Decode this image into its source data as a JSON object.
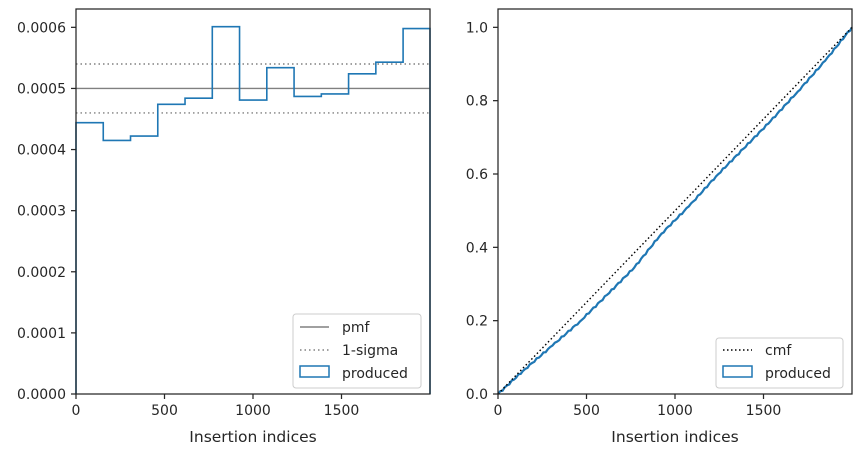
{
  "colors": {
    "pmf": "#808080",
    "sigma": "#808080",
    "produced": "#1f77b4",
    "cmf": "#000000",
    "axes": "#262626"
  },
  "chart_data": [
    {
      "type": "step-histogram",
      "xlabel": "Insertion indices",
      "ylabel": "",
      "xlim": [
        0,
        2000
      ],
      "ylim": [
        0,
        0.00063
      ],
      "xticks": [
        0,
        500,
        1000,
        1500
      ],
      "xtick_labels": [
        "0",
        "500",
        "1000",
        "1500"
      ],
      "yticks": [
        0,
        0.0001,
        0.0002,
        0.0003,
        0.0004,
        0.0005,
        0.0006
      ],
      "ytick_labels": [
        "0.0000",
        "0.0001",
        "0.0002",
        "0.0003",
        "0.0004",
        "0.0005",
        "0.0006"
      ],
      "legend_position": "lower right",
      "legend": [
        "pmf",
        "1-sigma",
        "produced"
      ],
      "pmf": 0.0005,
      "sigma_band": [
        0.00046,
        0.00054
      ],
      "bin_edges": [
        0,
        154,
        308,
        462,
        616,
        770,
        924,
        1078,
        1232,
        1386,
        1540,
        1694,
        1848,
        2000
      ],
      "produced": [
        0.000444,
        0.000415,
        0.000422,
        0.000474,
        0.000484,
        0.000601,
        0.000481,
        0.000534,
        0.000487,
        0.000491,
        0.000524,
        0.000543,
        0.000598
      ]
    },
    {
      "type": "line",
      "xlabel": "Insertion indices",
      "ylabel": "",
      "xlim": [
        0,
        2000
      ],
      "ylim": [
        0,
        1.05
      ],
      "xticks": [
        0,
        500,
        1000,
        1500
      ],
      "xtick_labels": [
        "0",
        "500",
        "1000",
        "1500"
      ],
      "yticks": [
        0,
        0.2,
        0.4,
        0.6,
        0.8,
        1.0
      ],
      "ytick_labels": [
        "0.0",
        "0.2",
        "0.4",
        "0.6",
        "0.8",
        "1.0"
      ],
      "legend_position": "lower right",
      "legend": [
        "cmf",
        "produced"
      ],
      "cmf": {
        "x": [
          0,
          2000
        ],
        "y": [
          0,
          1.0
        ]
      },
      "produced": {
        "x": [
          0,
          154,
          308,
          462,
          616,
          770,
          924,
          1078,
          1232,
          1386,
          1540,
          1694,
          1848,
          2000
        ],
        "y": [
          0,
          0.0684,
          0.1323,
          0.1973,
          0.2703,
          0.3448,
          0.4374,
          0.5115,
          0.5937,
          0.6687,
          0.7443,
          0.825,
          0.9086,
          1.0
        ]
      }
    }
  ]
}
